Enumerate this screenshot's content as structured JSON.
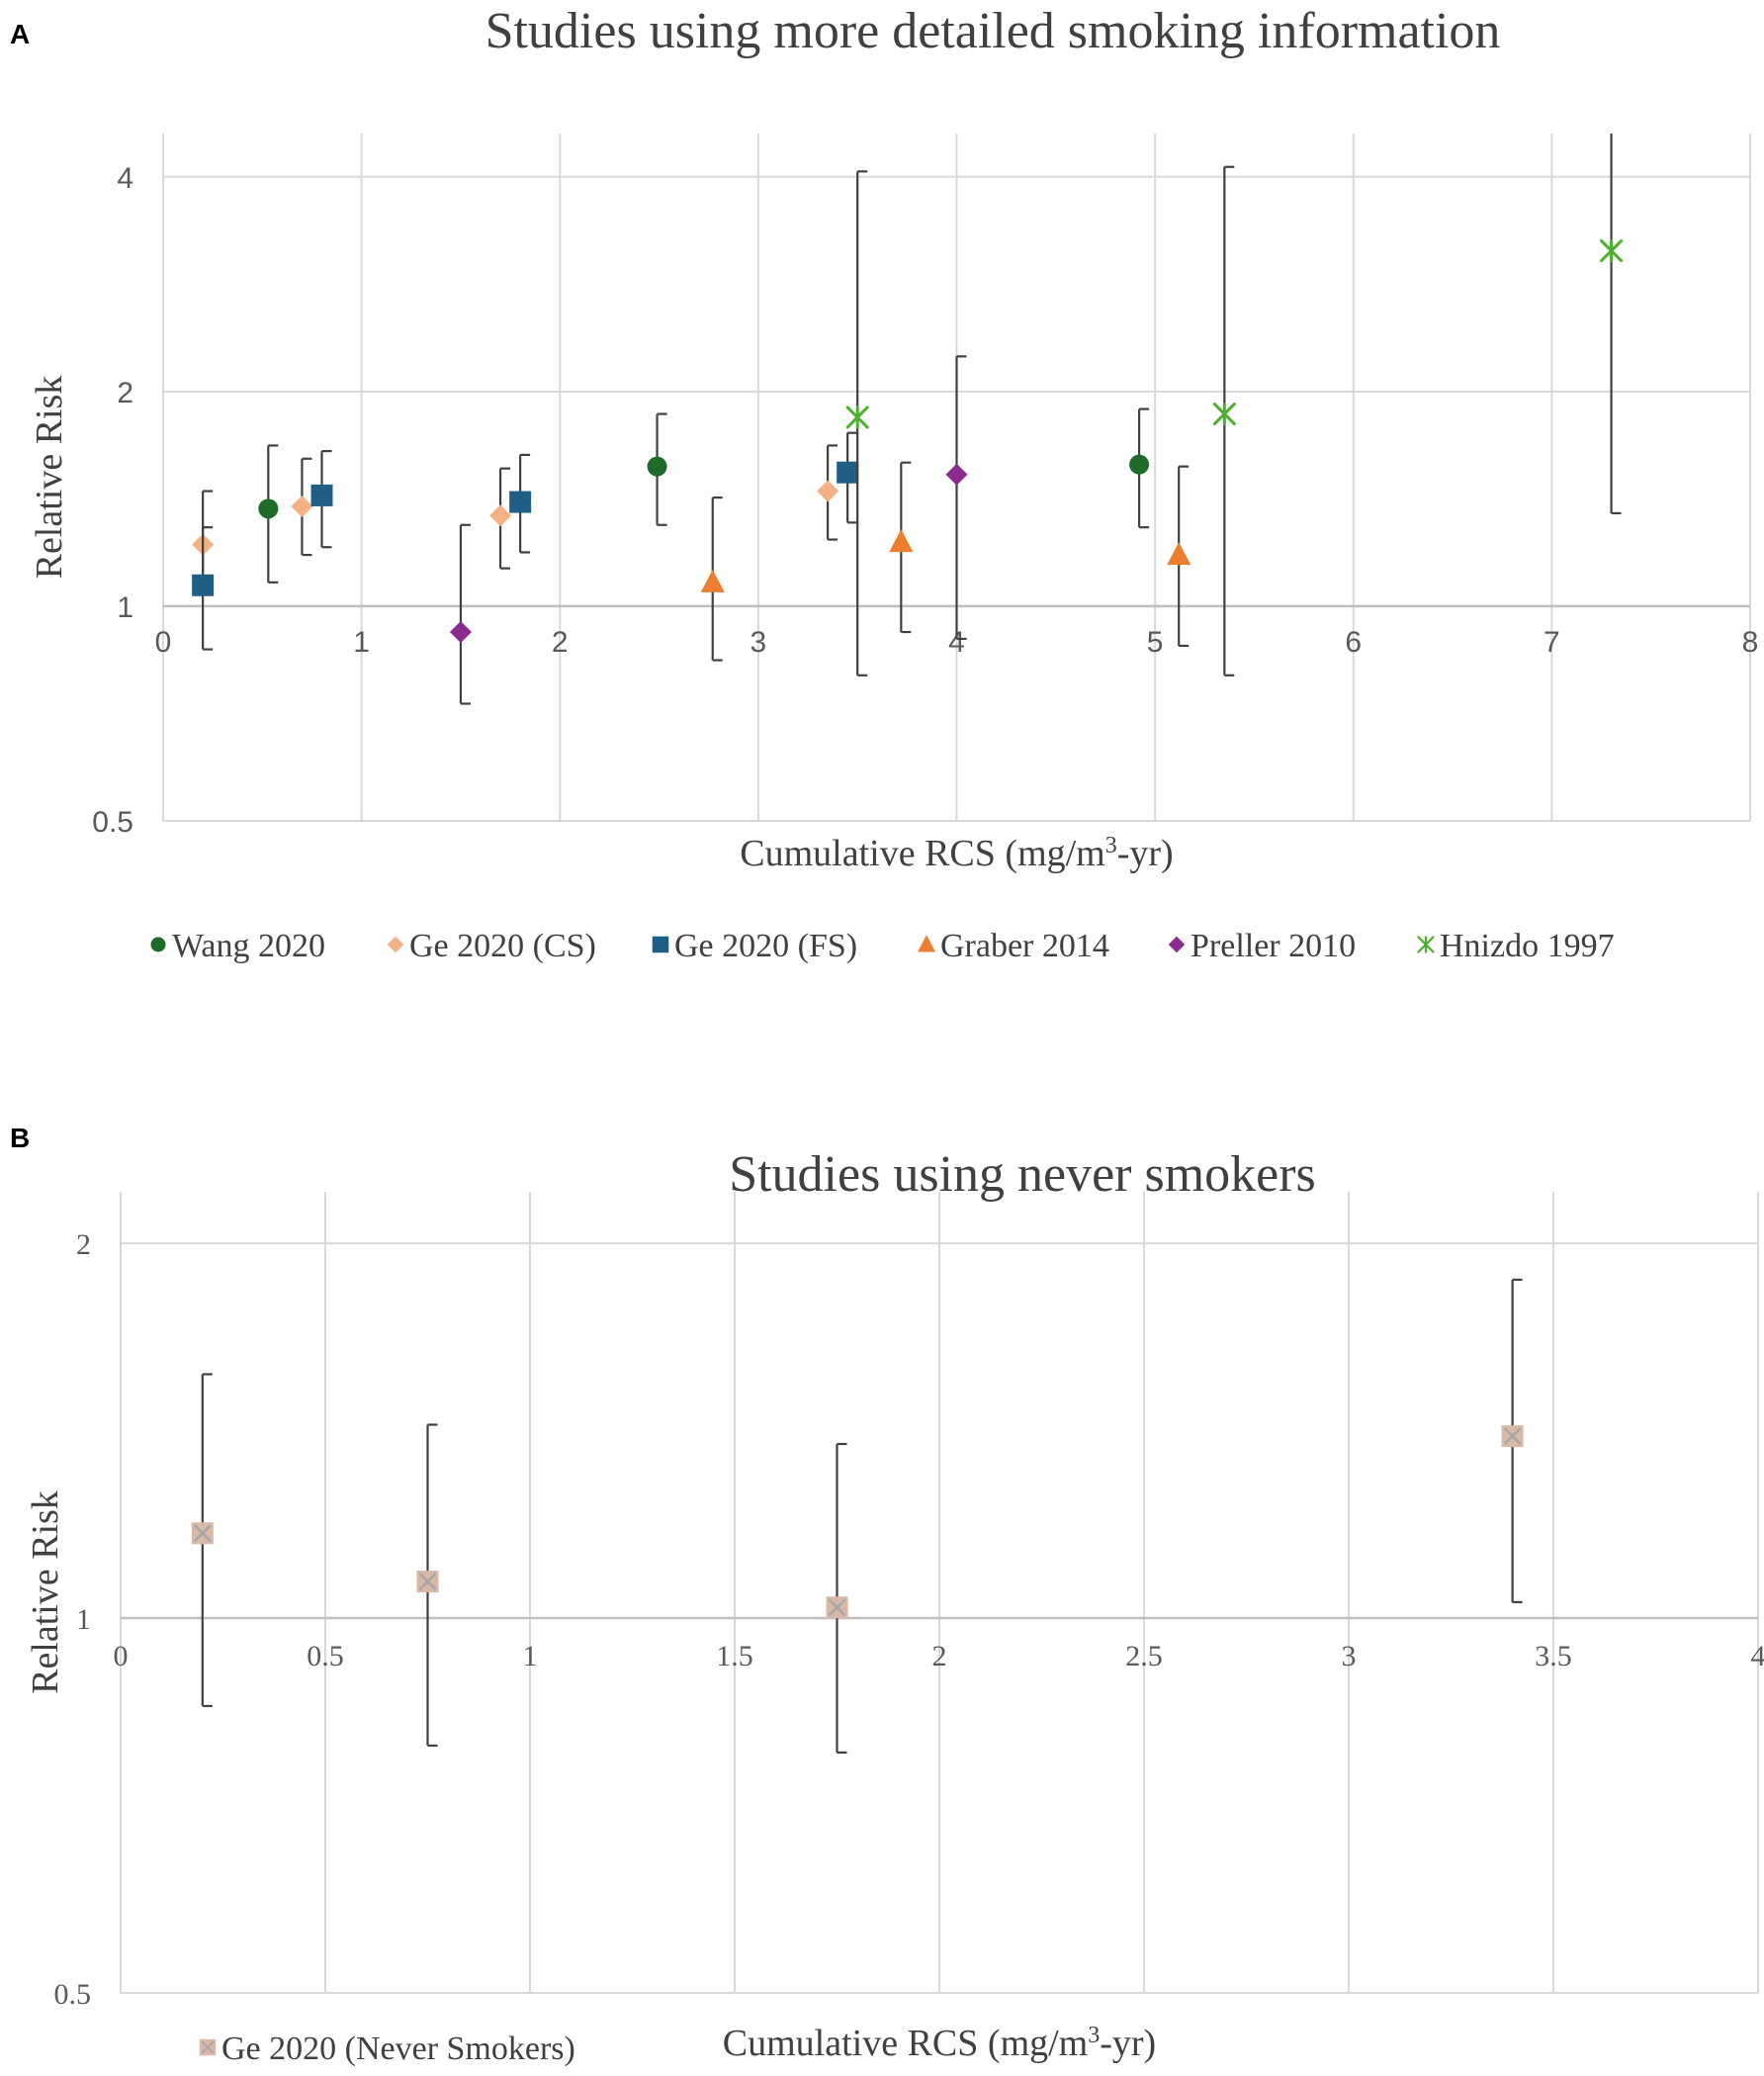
{
  "panels": [
    {
      "label": "A",
      "chart_data": {
        "type": "scatter",
        "title": "Studies using more detailed smoking information",
        "xlabel": "Cumulative RCS (mg/m3-yr)",
        "ylabel": "Relative Risk",
        "y_scale": "log2",
        "xlim": [
          0,
          8
        ],
        "ylim": [
          0.5,
          4.6
        ],
        "x_ticks": [
          0,
          1,
          2,
          3,
          4,
          5,
          6,
          7,
          8
        ],
        "x_tick_labels": [
          "0",
          "1",
          "2",
          "3",
          "4",
          "5",
          "6",
          "7",
          "8"
        ],
        "y_ticks": [
          0.5,
          1,
          2,
          4
        ],
        "y_tick_labels": [
          "0.5",
          "1",
          "2",
          "4"
        ],
        "grid": true,
        "legend_position": "bottom",
        "series": [
          {
            "name": "Wang 2020",
            "marker": "circle",
            "color": "#1e6b2a",
            "points": [
              {
                "x": 0.53,
                "y": 1.37,
                "lo": 1.08,
                "hi": 1.68
              },
              {
                "x": 2.49,
                "y": 1.57,
                "lo": 1.3,
                "hi": 1.86
              },
              {
                "x": 4.92,
                "y": 1.58,
                "lo": 1.29,
                "hi": 1.89
              }
            ]
          },
          {
            "name": "Ge 2020 (CS)",
            "marker": "diamond",
            "color": "#f4b183",
            "points": [
              {
                "x": 0.2,
                "y": 1.22,
                "lo": 1.09,
                "hi": 1.45
              },
              {
                "x": 0.7,
                "y": 1.38,
                "lo": 1.18,
                "hi": 1.61
              },
              {
                "x": 1.7,
                "y": 1.34,
                "lo": 1.13,
                "hi": 1.56
              },
              {
                "x": 3.35,
                "y": 1.45,
                "lo": 1.24,
                "hi": 1.68
              }
            ]
          },
          {
            "name": "Ge 2020 (FS)",
            "marker": "square",
            "color": "#1f5f86",
            "points": [
              {
                "x": 0.2,
                "y": 1.07,
                "lo": 0.87,
                "hi": 1.29
              },
              {
                "x": 0.8,
                "y": 1.43,
                "lo": 1.21,
                "hi": 1.65
              },
              {
                "x": 1.8,
                "y": 1.4,
                "lo": 1.19,
                "hi": 1.63
              },
              {
                "x": 3.45,
                "y": 1.54,
                "lo": 1.31,
                "hi": 1.75
              }
            ]
          },
          {
            "name": "Graber 2014",
            "marker": "triangle",
            "color": "#ed7d31",
            "points": [
              {
                "x": 2.77,
                "y": 1.08,
                "lo": 0.84,
                "hi": 1.42
              },
              {
                "x": 3.72,
                "y": 1.23,
                "lo": 0.92,
                "hi": 1.59
              },
              {
                "x": 5.12,
                "y": 1.18,
                "lo": 0.88,
                "hi": 1.57
              }
            ]
          },
          {
            "name": "Preller 2010",
            "marker": "diamond",
            "color": "#8b2a8f",
            "points": [
              {
                "x": 1.5,
                "y": 0.92,
                "lo": 0.73,
                "hi": 1.3
              },
              {
                "x": 4.0,
                "y": 1.53,
                "lo": 0.9,
                "hi": 2.24
              }
            ]
          },
          {
            "name": "Hnizdo 1997",
            "marker": "star",
            "color": "#4caf2e",
            "points": [
              {
                "x": 3.5,
                "y": 1.84,
                "lo": 0.8,
                "hi": 4.07
              },
              {
                "x": 5.35,
                "y": 1.86,
                "lo": 0.8,
                "hi": 4.13
              },
              {
                "x": 7.3,
                "y": 3.15,
                "lo": 1.35,
                "hi": 4.6
              }
            ]
          }
        ]
      }
    },
    {
      "label": "B",
      "chart_data": {
        "type": "scatter",
        "title": "Studies using never smokers",
        "xlabel": "Cumulative RCS (mg/m3-yr)",
        "ylabel": "Relative Risk",
        "y_scale": "log2",
        "xlim": [
          0,
          4
        ],
        "ylim": [
          0.5,
          2.2
        ],
        "x_ticks": [
          0,
          0.5,
          1,
          1.5,
          2,
          2.5,
          3,
          3.5,
          4
        ],
        "x_tick_labels": [
          "0",
          "0.5",
          "1",
          "1.5",
          "2",
          "2.5",
          "3",
          "3.5",
          "4"
        ],
        "y_ticks": [
          0.5,
          1,
          2
        ],
        "y_tick_labels": [
          "0.5",
          "1",
          "2"
        ],
        "grid": true,
        "legend_position": "bottom-left",
        "series": [
          {
            "name": "Ge 2020 (Never Smokers)",
            "marker": "square-x",
            "color": "#d9b8a8",
            "points": [
              {
                "x": 0.2,
                "y": 1.17,
                "lo": 0.85,
                "hi": 1.57
              },
              {
                "x": 0.75,
                "y": 1.07,
                "lo": 0.79,
                "hi": 1.43
              },
              {
                "x": 1.75,
                "y": 1.02,
                "lo": 0.78,
                "hi": 1.38
              },
              {
                "x": 3.4,
                "y": 1.4,
                "lo": 1.03,
                "hi": 1.87
              }
            ]
          }
        ]
      }
    }
  ],
  "unit_parts": {
    "prefix": "Cumulative RCS (mg/m",
    "sup": "3",
    "suffix": "-yr)"
  }
}
